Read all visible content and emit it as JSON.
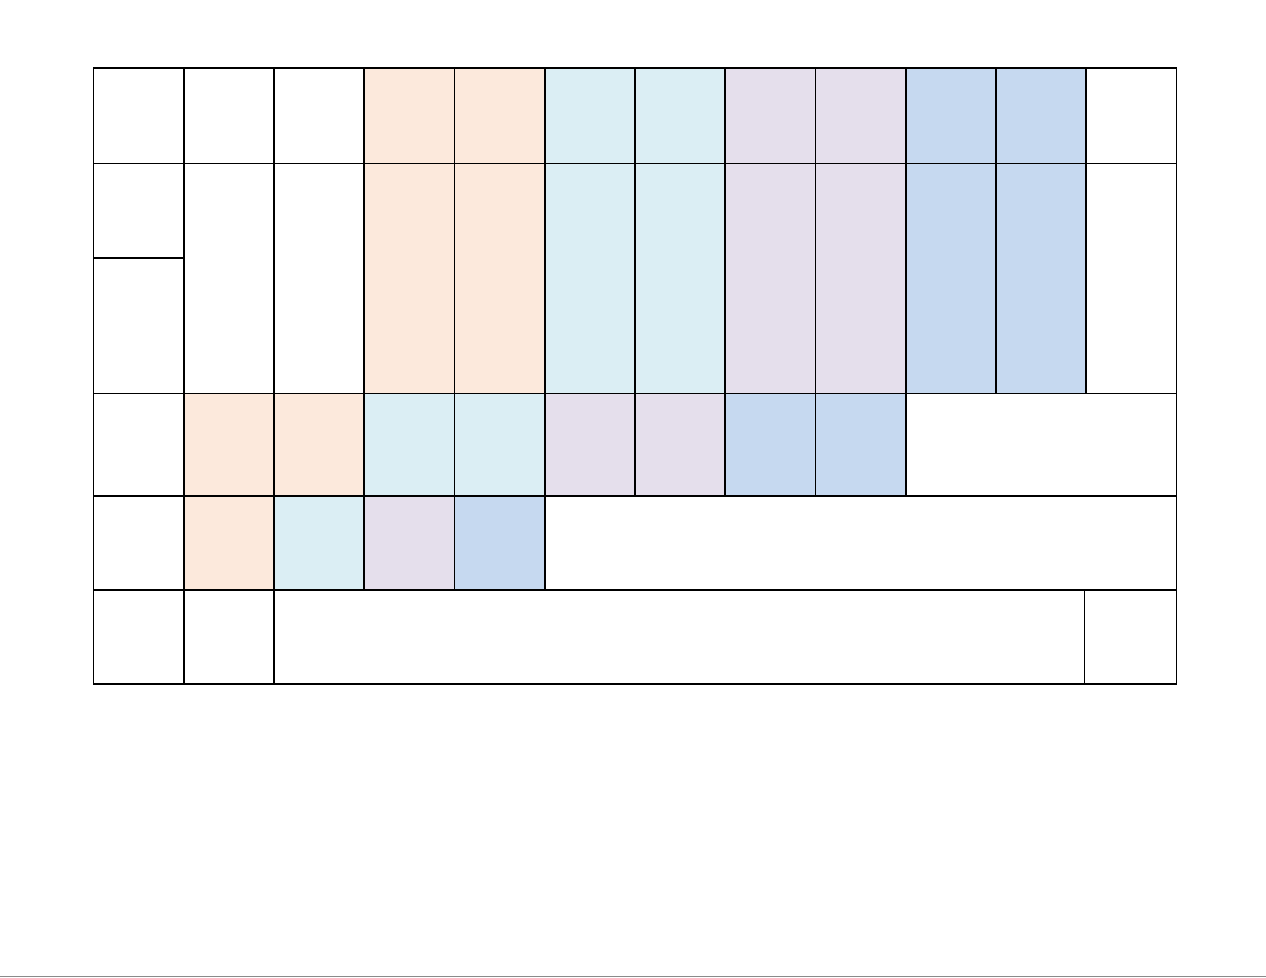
{
  "palette": {
    "blank": "#ffffff",
    "peach": "#fce9dc",
    "light_blue": "#dbeef4",
    "lavender": "#e5dfec",
    "periwinkle": "#c6d9f0",
    "border": "#000000"
  },
  "table": {
    "rows": [
      {
        "name": "row-1",
        "cells": [
          "blank",
          "blank",
          "blank",
          "peach",
          "peach",
          "light_blue",
          "light_blue",
          "lavender",
          "lavender",
          "periwinkle",
          "periwinkle",
          "blank"
        ]
      },
      {
        "name": "row-2",
        "cells": [
          "blank",
          "blank",
          "blank",
          "peach",
          "peach",
          "light_blue",
          "light_blue",
          "lavender",
          "lavender",
          "periwinkle",
          "periwinkle",
          "blank"
        ]
      },
      {
        "name": "row-3",
        "cells": [
          "blank",
          "peach",
          "peach",
          "light_blue",
          "light_blue",
          "lavender",
          "lavender",
          "periwinkle",
          "periwinkle",
          "blank"
        ]
      },
      {
        "name": "row-4",
        "cells": [
          "blank",
          "peach",
          "light_blue",
          "lavender",
          "periwinkle",
          "blank"
        ]
      },
      {
        "name": "row-5",
        "cells": [
          "blank",
          "blank",
          "blank",
          "blank"
        ]
      }
    ]
  }
}
